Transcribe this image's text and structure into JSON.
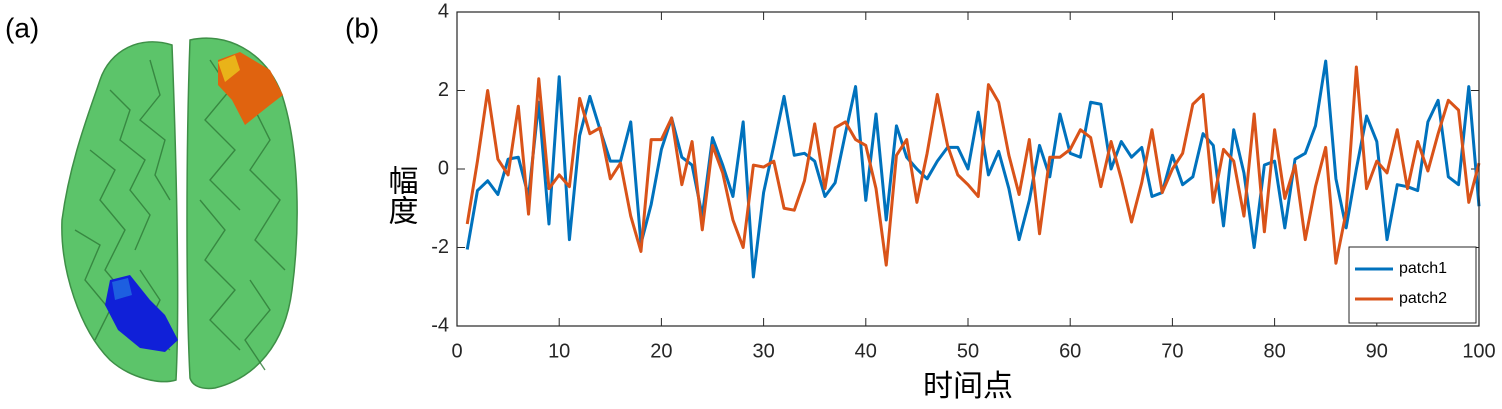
{
  "panel_labels": [
    "(a)",
    "(b)"
  ],
  "chart_data": {
    "type": "line",
    "xlabel": "时间点",
    "ylabel": "幅度",
    "x": [
      1,
      2,
      3,
      4,
      5,
      6,
      7,
      8,
      9,
      10,
      11,
      12,
      13,
      14,
      15,
      16,
      17,
      18,
      19,
      20,
      21,
      22,
      23,
      24,
      25,
      26,
      27,
      28,
      29,
      30,
      31,
      32,
      33,
      34,
      35,
      36,
      37,
      38,
      39,
      40,
      41,
      42,
      43,
      44,
      45,
      46,
      47,
      48,
      49,
      50,
      51,
      52,
      53,
      54,
      55,
      56,
      57,
      58,
      59,
      60,
      61,
      62,
      63,
      64,
      65,
      66,
      67,
      68,
      69,
      70,
      71,
      72,
      73,
      74,
      75,
      76,
      77,
      78,
      79,
      80,
      81,
      82,
      83,
      84,
      85,
      86,
      87,
      88,
      89,
      90,
      91,
      92,
      93,
      94,
      95,
      96,
      97,
      98,
      99,
      100
    ],
    "series": [
      {
        "name": "patch1",
        "color": "#0072bd",
        "values": [
          -2.05,
          -0.55,
          -0.3,
          -0.65,
          0.25,
          0.3,
          -0.7,
          1.7,
          -1.4,
          2.35,
          -1.8,
          0.85,
          1.85,
          1.0,
          0.2,
          0.2,
          1.2,
          -1.9,
          -0.9,
          0.5,
          1.3,
          0.3,
          0.1,
          -1.2,
          0.8,
          0.1,
          -0.7,
          1.2,
          -2.75,
          -0.6,
          0.6,
          1.85,
          0.35,
          0.4,
          0.2,
          -0.7,
          -0.35,
          0.9,
          2.1,
          -0.8,
          1.4,
          -1.3,
          1.1,
          0.3,
          0.0,
          -0.25,
          0.2,
          0.55,
          0.55,
          0.0,
          1.45,
          -0.15,
          0.45,
          -0.5,
          -1.8,
          -0.8,
          0.6,
          -0.2,
          1.4,
          0.4,
          0.3,
          1.7,
          1.65,
          0.0,
          0.7,
          0.3,
          0.55,
          -0.7,
          -0.6,
          0.35,
          -0.4,
          -0.2,
          0.9,
          0.6,
          -1.45,
          1.0,
          -0.1,
          -2.0,
          0.1,
          0.2,
          -1.5,
          0.25,
          0.4,
          1.1,
          2.75,
          -0.25,
          -1.5,
          0.0,
          1.35,
          0.7,
          -1.8,
          -0.4,
          -0.45,
          -0.55,
          1.2,
          1.75,
          -0.2,
          -0.4,
          2.1,
          -0.95
        ]
      },
      {
        "name": "patch2",
        "color": "#d95319",
        "values": [
          -1.4,
          0.2,
          2.0,
          0.25,
          -0.15,
          1.6,
          -1.15,
          2.3,
          -0.5,
          -0.15,
          -0.45,
          1.8,
          0.9,
          1.05,
          -0.25,
          0.15,
          -1.2,
          -2.1,
          0.75,
          0.75,
          1.3,
          -0.4,
          0.7,
          -1.55,
          0.6,
          -0.1,
          -1.3,
          -2.0,
          0.1,
          0.05,
          0.2,
          -1.0,
          -1.05,
          -0.3,
          1.15,
          -0.5,
          1.05,
          1.2,
          0.75,
          0.6,
          -0.5,
          -2.45,
          0.35,
          0.75,
          -0.85,
          0.4,
          1.9,
          0.6,
          -0.15,
          -0.4,
          -0.7,
          2.15,
          1.7,
          0.35,
          -0.65,
          0.75,
          -1.65,
          0.3,
          0.3,
          0.5,
          1.0,
          0.8,
          -0.45,
          0.7,
          -0.25,
          -1.35,
          -0.35,
          1.0,
          -0.6,
          0.0,
          0.4,
          1.65,
          1.9,
          -0.85,
          0.5,
          0.2,
          -1.2,
          1.4,
          -1.6,
          1.0,
          -0.75,
          0.1,
          -1.8,
          -0.45,
          0.55,
          -2.4,
          -1.1,
          2.6,
          -0.5,
          0.2,
          -0.1,
          1.0,
          -0.5,
          0.7,
          -0.05,
          0.9,
          1.75,
          1.5,
          -0.85,
          0.15
        ]
      }
    ],
    "xlim": [
      0,
      100
    ],
    "xticks": [
      0,
      10,
      20,
      30,
      40,
      50,
      60,
      70,
      80,
      90,
      100
    ],
    "ylim": [
      -4,
      4
    ],
    "yticks": [
      -4,
      -2,
      0,
      2,
      4
    ],
    "legend": "lower right"
  }
}
